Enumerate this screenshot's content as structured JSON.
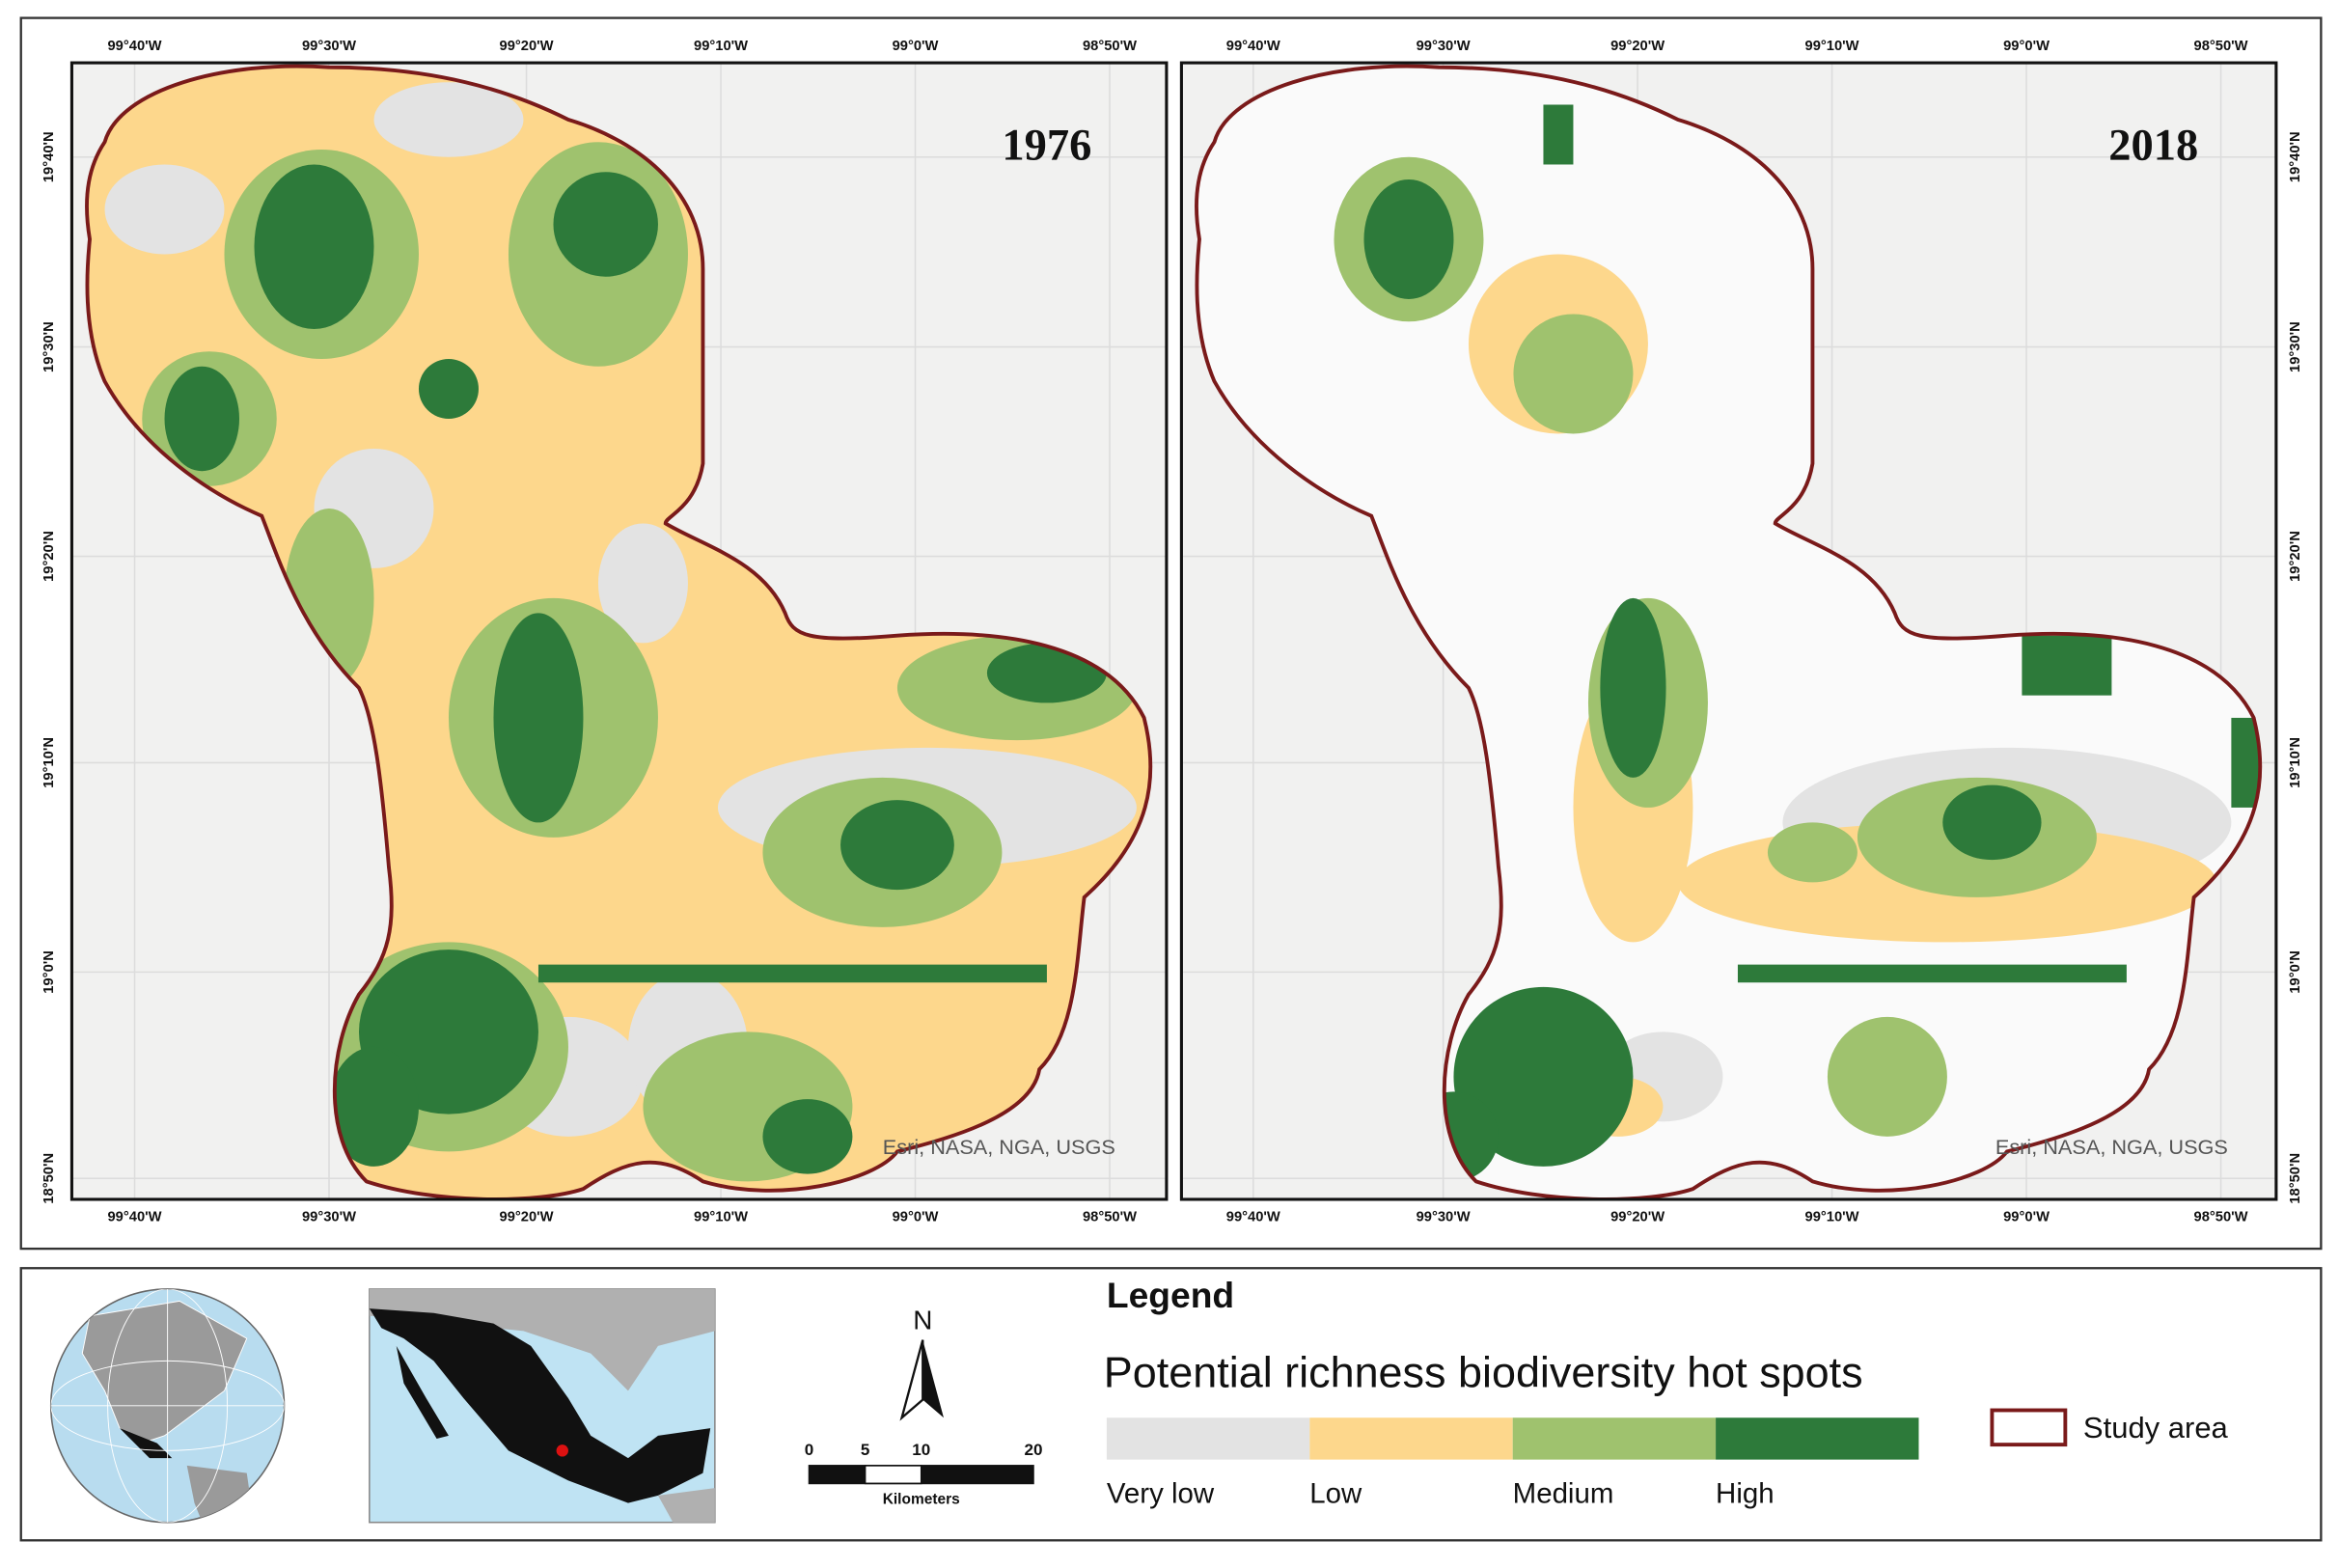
{
  "maps": [
    {
      "year": "1976",
      "x_labels": [
        "99°40'W",
        "99°30'W",
        "99°20'W",
        "99°10'W",
        "99°0'W",
        "98°50'W"
      ],
      "y_labels": [
        "19°40'N",
        "19°30'N",
        "19°20'N",
        "19°10'N",
        "19°0'N",
        "18°50'N"
      ],
      "attribution": "Esri, NASA, NGA, USGS"
    },
    {
      "year": "2018",
      "x_labels": [
        "99°40'W",
        "99°30'W",
        "99°20'W",
        "99°10'W",
        "99°0'W",
        "98°50'W"
      ],
      "y_labels": [
        "19°40'N",
        "19°30'N",
        "19°20'N",
        "19°10'N",
        "19°0'N",
        "18°50'N"
      ],
      "attribution": "Esri, NASA, NGA, USGS"
    }
  ],
  "legend": {
    "title": "Legend",
    "subtitle": "Potential richness biodiversity hot spots",
    "classes": [
      "Very low",
      "Low",
      "Medium",
      "High"
    ],
    "study_area": "Study area"
  },
  "north": "N",
  "scale_bar": {
    "labels": [
      "0",
      "5",
      "10",
      "20"
    ],
    "unit": "Kilometers"
  }
}
